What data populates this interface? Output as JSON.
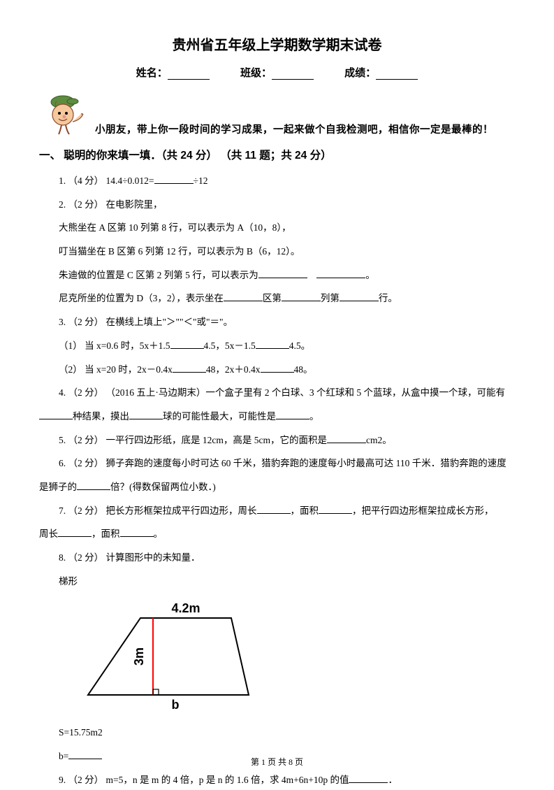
{
  "title": "贵州省五年级上学期数学期末试卷",
  "info": {
    "name_label": "姓名：",
    "class_label": "班级：",
    "score_label": "成绩："
  },
  "greeting": "小朋友，带上你一段时间的学习成果，一起来做个自我检测吧，相信你一定是最棒的！",
  "section1": {
    "heading": "一、 聪明的你来填一填．（共 24 分） （共 11 题；共 24 分）"
  },
  "q1": {
    "prefix": "1. （4 分） 14.4÷0.012=",
    "suffix": "÷12"
  },
  "q2": {
    "line1": "2. （2 分） 在电影院里，",
    "line2": "大熊坐在 A 区第 10 列第 8 行，可以表示为 A（10，8），",
    "line3": "叮当猫坐在 B 区第 6 列第 12 行，可以表示为 B（6，12）。",
    "line4_pre": "朱迪做的位置是 C 区第 2 列第 5 行，可以表示为",
    "line4_post": "。",
    "line5_pre": "尼克所坐的位置为 D（3，2），表示坐在",
    "line5_mid1": "区第",
    "line5_mid2": "列第",
    "line5_post": "行。"
  },
  "q3": {
    "line1": "3. （2 分） 在横线上填上\"＞\"\"＜\"或\"＝\"。",
    "sub1_pre": "（1） 当 x=0.6 时，5x＋1.5",
    "sub1_mid": "4.5，5x－1.5",
    "sub1_post": "4.5。",
    "sub2_pre": "（2） 当 x=20 时，2x－0.4x",
    "sub2_mid": "48，2x＋0.4x",
    "sub2_post": "48。"
  },
  "q4": {
    "line1_pre": "4. （2 分） （2016 五上·马边期末）一个盒子里有 2 个白球、3 个红球和 5 个蓝球，从盒中摸一个球，可能有",
    "line2_mid1": "种结果，摸出",
    "line2_mid2": "球的可能性最大，可能性是",
    "line2_post": "。"
  },
  "q5": {
    "pre": "5. （2 分） 一平行四边形纸，底是 12cm，高是 5cm，它的面积是",
    "post": "cm2。"
  },
  "q6": {
    "line1": "6. （2 分） 狮子奔跑的速度每小时可达 60 千米，猎豹奔跑的速度每小时最高可达 110 千米．猎豹奔跑的速度",
    "line2_pre": "是狮子的",
    "line2_post": "倍？(得数保留两位小数．)"
  },
  "q7": {
    "line1_pre": "7. （2 分） 把长方形框架拉成平行四边形，周长",
    "line1_mid1": "，面积",
    "line1_mid2": "，把平行四边形框架拉成长方形，",
    "line2_pre": "周长",
    "line2_mid": "，面积",
    "line2_post": "。"
  },
  "q8": {
    "line1": "8. （2 分） 计算图形中的未知量．",
    "line2": "梯形",
    "result1": "S=15.75m2",
    "result2_pre": "b="
  },
  "q9": {
    "pre": "9. （2 分） m=5，n 是 m 的 4 倍，p 是 n 的 1.6 倍，求 4m+6n+10p 的值",
    "post": "．"
  },
  "trapezoid": {
    "top_label": "4.2m",
    "height_label": "3m",
    "bottom_label": "b",
    "top_width": 130,
    "bottom_width": 230,
    "height": 110,
    "stroke_color": "#000000",
    "height_line_color": "#ff0000",
    "label_fontsize": 18,
    "label_fontweight": "bold"
  },
  "mascot": {
    "hat_color": "#5d8c3f",
    "face_color": "#f5c99c",
    "outline_color": "#8b4a2e"
  },
  "footer": {
    "text": "第 1 页 共 8 页"
  }
}
